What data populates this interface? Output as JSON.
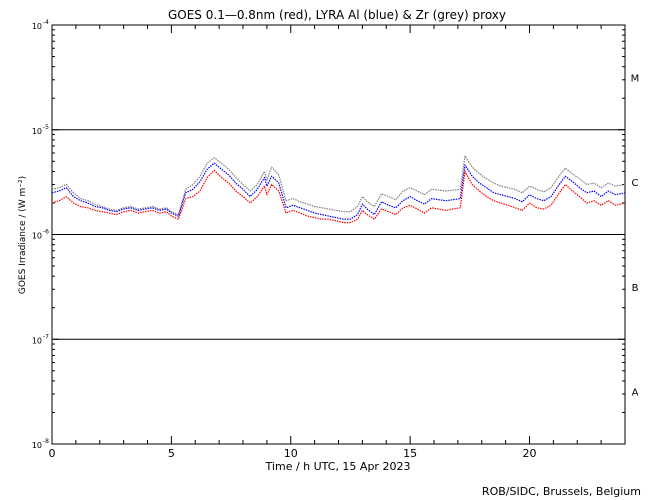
{
  "chart_data": {
    "type": "line",
    "title": "GOES 0.1—0.8nm (red), LYRA Al (blue) & Zr (grey) proxy",
    "xlabel": "Time / h UTC, 15 Apr 2023",
    "ylabel": "GOES Irradiance / (W m⁻²)",
    "xlim": [
      0,
      24
    ],
    "ylim": [
      1e-08,
      0.0001
    ],
    "yscale": "log",
    "x_ticks": [
      0,
      5,
      10,
      15,
      20
    ],
    "y_ticks": [
      {
        "base": "10",
        "exp": "-8",
        "value": 1e-08
      },
      {
        "base": "10",
        "exp": "-7",
        "value": 1e-07
      },
      {
        "base": "10",
        "exp": "-6",
        "value": 1e-06
      },
      {
        "base": "10",
        "exp": "-5",
        "value": 1e-05
      },
      {
        "base": "10",
        "exp": "-4",
        "value": 0.0001
      }
    ],
    "flare_classes": [
      {
        "label": "A",
        "value": 3.16e-08
      },
      {
        "label": "B",
        "value": 3.16e-07
      },
      {
        "label": "C",
        "value": 3.16e-06
      },
      {
        "label": "M",
        "value": 3.16e-05
      }
    ],
    "threshold_lines": [
      1e-07,
      1e-06,
      1e-05
    ],
    "series": [
      {
        "color": "#ff0000",
        "x": [
          0.0,
          0.3,
          0.6,
          0.9,
          1.2,
          1.5,
          1.8,
          2.1,
          2.4,
          2.7,
          3.0,
          3.3,
          3.6,
          3.9,
          4.2,
          4.5,
          4.8,
          5.0,
          5.3,
          5.6,
          5.9,
          6.2,
          6.5,
          6.8,
          7.1,
          7.4,
          7.7,
          8.0,
          8.3,
          8.6,
          8.9,
          9.0,
          9.2,
          9.5,
          9.8,
          10.1,
          10.4,
          10.7,
          11.0,
          11.3,
          11.6,
          11.9,
          12.2,
          12.5,
          12.8,
          13.0,
          13.2,
          13.5,
          13.8,
          14.1,
          14.4,
          14.7,
          15.0,
          15.3,
          15.6,
          15.9,
          16.2,
          16.5,
          16.8,
          17.1,
          17.3,
          17.6,
          17.9,
          18.2,
          18.5,
          18.8,
          19.1,
          19.4,
          19.7,
          20.0,
          20.3,
          20.6,
          20.9,
          21.2,
          21.5,
          21.8,
          22.1,
          22.4,
          22.7,
          23.0,
          23.3,
          23.6,
          24.0
        ],
        "values": [
          2e-06,
          2.1e-06,
          2.3e-06,
          2e-06,
          1.85e-06,
          1.8e-06,
          1.7e-06,
          1.65e-06,
          1.6e-06,
          1.55e-06,
          1.65e-06,
          1.7e-06,
          1.6e-06,
          1.65e-06,
          1.7e-06,
          1.6e-06,
          1.65e-06,
          1.5e-06,
          1.4e-06,
          2.2e-06,
          2.3e-06,
          2.6e-06,
          3.5e-06,
          4.1e-06,
          3.5e-06,
          3.1e-06,
          2.6e-06,
          2.3e-06,
          2e-06,
          2.3e-06,
          2.9e-06,
          2.4e-06,
          3e-06,
          2.6e-06,
          1.6e-06,
          1.7e-06,
          1.6e-06,
          1.5e-06,
          1.45e-06,
          1.4e-06,
          1.4e-06,
          1.35e-06,
          1.3e-06,
          1.3e-06,
          1.4e-06,
          1.7e-06,
          1.55e-06,
          1.4e-06,
          1.75e-06,
          1.65e-06,
          1.55e-06,
          1.8e-06,
          1.9e-06,
          1.75e-06,
          1.6e-06,
          1.8e-06,
          1.75e-06,
          1.7e-06,
          1.75e-06,
          1.8e-06,
          4e-06,
          3e-06,
          2.6e-06,
          2.3e-06,
          2.1e-06,
          2e-06,
          1.9e-06,
          1.8e-06,
          1.7e-06,
          2e-06,
          1.8e-06,
          1.75e-06,
          1.9e-06,
          2.4e-06,
          3e-06,
          2.6e-06,
          2.3e-06,
          2e-06,
          2.1e-06,
          1.9e-06,
          2.1e-06,
          1.9e-06,
          2e-06
        ]
      },
      {
        "color": "#0000ff",
        "x": [
          0.0,
          0.3,
          0.6,
          0.9,
          1.2,
          1.5,
          1.8,
          2.1,
          2.4,
          2.7,
          3.0,
          3.3,
          3.6,
          3.9,
          4.2,
          4.5,
          4.8,
          5.0,
          5.3,
          5.6,
          5.9,
          6.2,
          6.5,
          6.8,
          7.1,
          7.4,
          7.7,
          8.0,
          8.3,
          8.6,
          8.9,
          9.0,
          9.2,
          9.5,
          9.8,
          10.1,
          10.4,
          10.7,
          11.0,
          11.3,
          11.6,
          11.9,
          12.2,
          12.5,
          12.8,
          13.0,
          13.2,
          13.5,
          13.8,
          14.1,
          14.4,
          14.7,
          15.0,
          15.3,
          15.6,
          15.9,
          16.2,
          16.5,
          16.8,
          17.1,
          17.3,
          17.6,
          17.9,
          18.2,
          18.5,
          18.8,
          19.1,
          19.4,
          19.7,
          20.0,
          20.3,
          20.6,
          20.9,
          21.2,
          21.5,
          21.8,
          22.1,
          22.4,
          22.7,
          23.0,
          23.3,
          23.6,
          24.0
        ],
        "values": [
          2.5e-06,
          2.6e-06,
          2.8e-06,
          2.3e-06,
          2.1e-06,
          2e-06,
          1.85e-06,
          1.8e-06,
          1.7e-06,
          1.65e-06,
          1.75e-06,
          1.8e-06,
          1.7e-06,
          1.75e-06,
          1.8e-06,
          1.7e-06,
          1.75e-06,
          1.6e-06,
          1.5e-06,
          2.5e-06,
          2.7e-06,
          3.2e-06,
          4.2e-06,
          4.8e-06,
          4.2e-06,
          3.7e-06,
          3.1e-06,
          2.7e-06,
          2.3e-06,
          2.7e-06,
          3.5e-06,
          2.9e-06,
          3.6e-06,
          3.1e-06,
          1.8e-06,
          1.9e-06,
          1.8e-06,
          1.7e-06,
          1.6e-06,
          1.55e-06,
          1.5e-06,
          1.45e-06,
          1.4e-06,
          1.4e-06,
          1.55e-06,
          1.95e-06,
          1.75e-06,
          1.55e-06,
          2.05e-06,
          1.9e-06,
          1.8e-06,
          2.1e-06,
          2.3e-06,
          2.1e-06,
          1.95e-06,
          2.2e-06,
          2.15e-06,
          2.1e-06,
          2.15e-06,
          2.2e-06,
          4.6e-06,
          3.6e-06,
          3.1e-06,
          2.8e-06,
          2.5e-06,
          2.4e-06,
          2.3e-06,
          2.2e-06,
          2.05e-06,
          2.4e-06,
          2.2e-06,
          2.1e-06,
          2.3e-06,
          2.9e-06,
          3.6e-06,
          3.2e-06,
          2.8e-06,
          2.5e-06,
          2.6e-06,
          2.3e-06,
          2.6e-06,
          2.4e-06,
          2.5e-06
        ]
      },
      {
        "color": "#808080",
        "x": [
          0.0,
          0.3,
          0.6,
          0.9,
          1.2,
          1.5,
          1.8,
          2.1,
          2.4,
          2.7,
          3.0,
          3.3,
          3.6,
          3.9,
          4.2,
          4.5,
          4.8,
          5.0,
          5.3,
          5.6,
          5.9,
          6.2,
          6.5,
          6.8,
          7.1,
          7.4,
          7.7,
          8.0,
          8.3,
          8.6,
          8.9,
          9.0,
          9.2,
          9.5,
          9.8,
          10.1,
          10.4,
          10.7,
          11.0,
          11.3,
          11.6,
          11.9,
          12.2,
          12.5,
          12.8,
          13.0,
          13.2,
          13.5,
          13.8,
          14.1,
          14.4,
          14.7,
          15.0,
          15.3,
          15.6,
          15.9,
          16.2,
          16.5,
          16.8,
          17.1,
          17.3,
          17.6,
          17.9,
          18.2,
          18.5,
          18.8,
          19.1,
          19.4,
          19.7,
          20.0,
          20.3,
          20.6,
          20.9,
          21.2,
          21.5,
          21.8,
          22.1,
          22.4,
          22.7,
          23.0,
          23.3,
          23.6,
          24.0
        ],
        "values": [
          2.7e-06,
          2.8e-06,
          3e-06,
          2.5e-06,
          2.2e-06,
          2.1e-06,
          1.95e-06,
          1.85e-06,
          1.75e-06,
          1.7e-06,
          1.8e-06,
          1.85e-06,
          1.75e-06,
          1.8e-06,
          1.85e-06,
          1.75e-06,
          1.8e-06,
          1.65e-06,
          1.55e-06,
          2.7e-06,
          3e-06,
          3.6e-06,
          4.8e-06,
          5.4e-06,
          4.8e-06,
          4.2e-06,
          3.5e-06,
          3e-06,
          2.6e-06,
          3e-06,
          4e-06,
          3.3e-06,
          4.4e-06,
          3.7e-06,
          2.1e-06,
          2.2e-06,
          2.05e-06,
          1.95e-06,
          1.85e-06,
          1.8e-06,
          1.75e-06,
          1.7e-06,
          1.65e-06,
          1.65e-06,
          1.85e-06,
          2.3e-06,
          2.05e-06,
          1.85e-06,
          2.45e-06,
          2.3e-06,
          2.15e-06,
          2.6e-06,
          2.8e-06,
          2.6e-06,
          2.4e-06,
          2.7e-06,
          2.65e-06,
          2.6e-06,
          2.65e-06,
          2.7e-06,
          5.6e-06,
          4.4e-06,
          3.8e-06,
          3.4e-06,
          3.1e-06,
          2.9e-06,
          2.8e-06,
          2.7e-06,
          2.5e-06,
          2.9e-06,
          2.7e-06,
          2.55e-06,
          2.8e-06,
          3.5e-06,
          4.3e-06,
          3.8e-06,
          3.4e-06,
          3e-06,
          3.1e-06,
          2.8e-06,
          3.1e-06,
          2.9e-06,
          3e-06
        ]
      }
    ]
  },
  "footer": {
    "credit": "ROB/SIDC, Brussels, Belgium"
  }
}
